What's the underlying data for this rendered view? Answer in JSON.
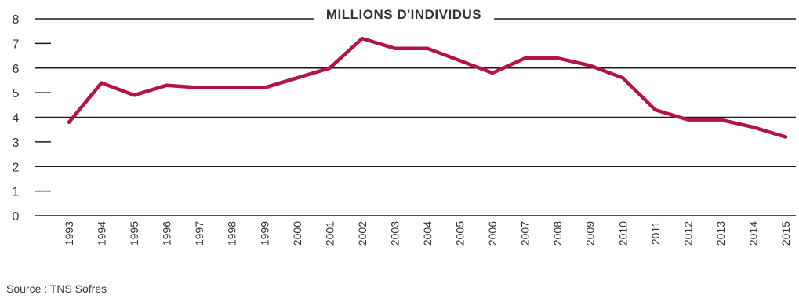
{
  "chart_data": {
    "type": "line",
    "title": "MILLIONS D'INDIVIDUS",
    "xlabel": "",
    "ylabel": "",
    "x": [
      "1993",
      "1994",
      "1995",
      "1996",
      "1997",
      "1998",
      "1999",
      "2000",
      "2001",
      "2002",
      "2003",
      "2004",
      "2005",
      "2006",
      "2007",
      "2008",
      "2009",
      "2010",
      "2011",
      "2012",
      "2013",
      "2014",
      "2015"
    ],
    "y_ticks": [
      "0",
      "1",
      "2",
      "3",
      "4",
      "5",
      "6",
      "7",
      "8"
    ],
    "ylim": [
      0,
      8
    ],
    "series": [
      {
        "name": "",
        "values": [
          3.8,
          5.4,
          4.9,
          5.3,
          5.2,
          5.2,
          5.2,
          5.6,
          6.0,
          7.2,
          6.8,
          6.8,
          6.3,
          5.8,
          6.4,
          6.4,
          6.1,
          5.6,
          4.3,
          3.9,
          3.9,
          3.6,
          3.2
        ]
      }
    ],
    "line_color": "#b5124a",
    "grid": true,
    "legend": "none"
  },
  "source": "Source : TNS Sofres"
}
